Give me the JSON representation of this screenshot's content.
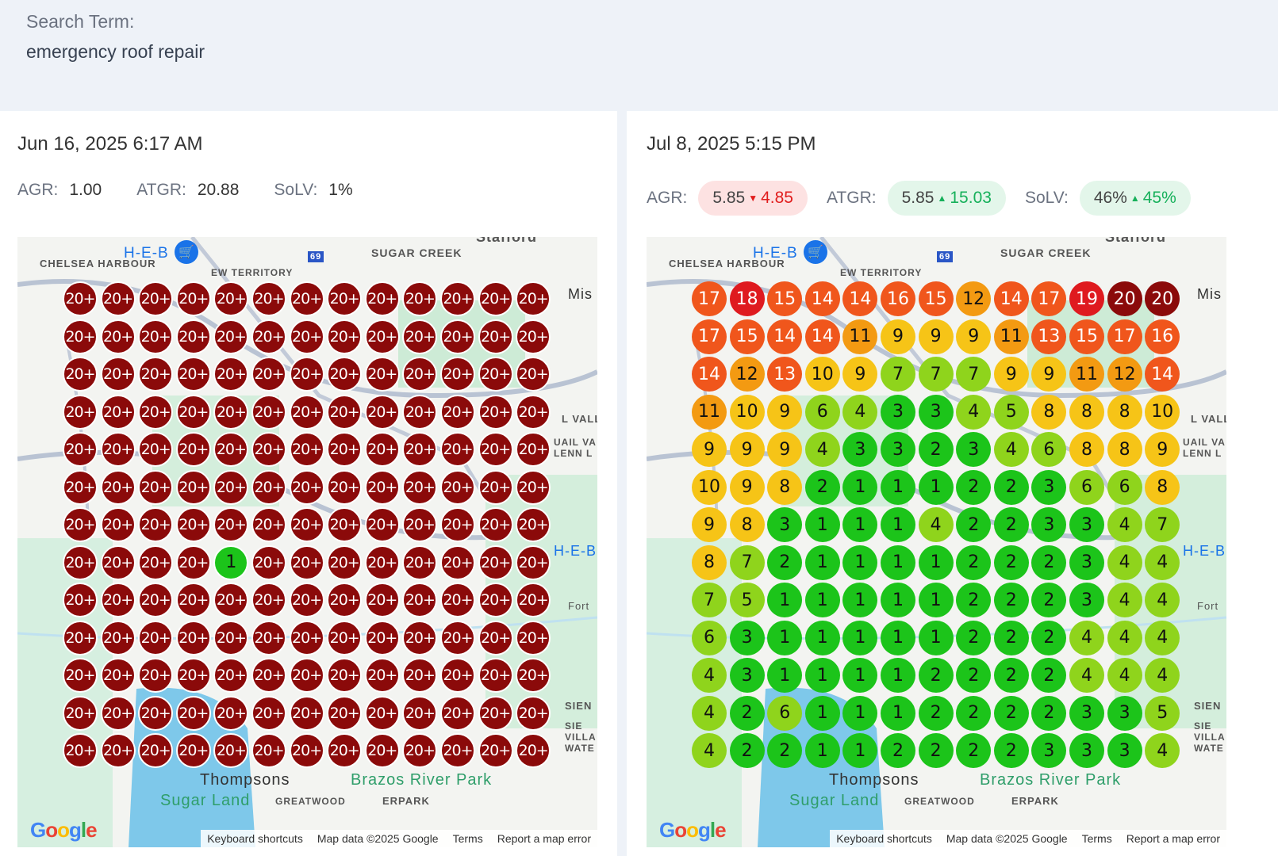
{
  "search": {
    "label": "Search Term:",
    "value": "emergency roof repair"
  },
  "colors": {
    "rank_1_3": "#1cc41a",
    "rank_4_7": "#8fd41c",
    "rank_8_10": "#f6c417",
    "rank_11_12": "#f39a12",
    "rank_13_17": "#f0561c",
    "rank_18_19": "#df1a1f",
    "rank_20": "#8b0a0a",
    "bad": "#e11d1d",
    "good": "#16b05a"
  },
  "map": {
    "labels": [
      "CHELSEA HARBOUR",
      "H-E-B",
      "SUGAR CREEK",
      "Stafford",
      "Mis",
      "EW TERRITORY",
      "ERPARK",
      "Brazos River Park",
      "Sugar Land",
      "GREATWOOD",
      "L VALLE",
      "UAIL VA LENN L",
      "H-E-B",
      "Fort",
      "SIEN",
      "SIE VILLA WATE",
      "Thompsons",
      "69"
    ],
    "google": "Google",
    "footer": [
      "Keyboard shortcuts",
      "Map data ©2025 Google",
      "Terms",
      "Report a map error"
    ]
  },
  "left": {
    "date": "Jun 16, 2025 6:17 AM",
    "agr_label": "AGR:",
    "agr": "1.00",
    "atgr_label": "ATGR:",
    "atgr": "20.88",
    "solv_label": "SoLV:",
    "solv": "1%",
    "grid": [
      [
        "20+",
        "20+",
        "20+",
        "20+",
        "20+",
        "20+",
        "20+",
        "20+",
        "20+",
        "20+",
        "20+",
        "20+",
        "20+"
      ],
      [
        "20+",
        "20+",
        "20+",
        "20+",
        "20+",
        "20+",
        "20+",
        "20+",
        "20+",
        "20+",
        "20+",
        "20+",
        "20+"
      ],
      [
        "20+",
        "20+",
        "20+",
        "20+",
        "20+",
        "20+",
        "20+",
        "20+",
        "20+",
        "20+",
        "20+",
        "20+",
        "20+"
      ],
      [
        "20+",
        "20+",
        "20+",
        "20+",
        "20+",
        "20+",
        "20+",
        "20+",
        "20+",
        "20+",
        "20+",
        "20+",
        "20+"
      ],
      [
        "20+",
        "20+",
        "20+",
        "20+",
        "20+",
        "20+",
        "20+",
        "20+",
        "20+",
        "20+",
        "20+",
        "20+",
        "20+"
      ],
      [
        "20+",
        "20+",
        "20+",
        "20+",
        "20+",
        "20+",
        "20+",
        "20+",
        "20+",
        "20+",
        "20+",
        "20+",
        "20+"
      ],
      [
        "20+",
        "20+",
        "20+",
        "20+",
        "20+",
        "20+",
        "20+",
        "20+",
        "20+",
        "20+",
        "20+",
        "20+",
        "20+"
      ],
      [
        "20+",
        "20+",
        "20+",
        "20+",
        "1",
        "20+",
        "20+",
        "20+",
        "20+",
        "20+",
        "20+",
        "20+",
        "20+"
      ],
      [
        "20+",
        "20+",
        "20+",
        "20+",
        "20+",
        "20+",
        "20+",
        "20+",
        "20+",
        "20+",
        "20+",
        "20+",
        "20+"
      ],
      [
        "20+",
        "20+",
        "20+",
        "20+",
        "20+",
        "20+",
        "20+",
        "20+",
        "20+",
        "20+",
        "20+",
        "20+",
        "20+"
      ],
      [
        "20+",
        "20+",
        "20+",
        "20+",
        "20+",
        "20+",
        "20+",
        "20+",
        "20+",
        "20+",
        "20+",
        "20+",
        "20+"
      ],
      [
        "20+",
        "20+",
        "20+",
        "20+",
        "20+",
        "20+",
        "20+",
        "20+",
        "20+",
        "20+",
        "20+",
        "20+",
        "20+"
      ],
      [
        "20+",
        "20+",
        "20+",
        "20+",
        "20+",
        "20+",
        "20+",
        "20+",
        "20+",
        "20+",
        "20+",
        "20+",
        "20+"
      ]
    ]
  },
  "right": {
    "date": "Jul 8, 2025 5:15 PM",
    "agr_label": "AGR:",
    "agr": "5.85",
    "agr_delta": "4.85",
    "agr_dir": "▼",
    "atgr_label": "ATGR:",
    "atgr": "5.85",
    "atgr_delta": "15.03",
    "atgr_dir": "▲",
    "solv_label": "SoLV:",
    "solv": "46%",
    "solv_delta": "45%",
    "solv_dir": "▲",
    "grid": [
      [
        "17",
        "18",
        "15",
        "14",
        "14",
        "16",
        "15",
        "12",
        "14",
        "17",
        "19",
        "20",
        "20"
      ],
      [
        "17",
        "15",
        "14",
        "14",
        "11",
        "9",
        "9",
        "9",
        "11",
        "13",
        "15",
        "17",
        "16"
      ],
      [
        "14",
        "12",
        "13",
        "10",
        "9",
        "7",
        "7",
        "7",
        "9",
        "9",
        "11",
        "12",
        "14"
      ],
      [
        "11",
        "10",
        "9",
        "6",
        "4",
        "3",
        "3",
        "4",
        "5",
        "8",
        "8",
        "8",
        "10"
      ],
      [
        "9",
        "9",
        "9",
        "4",
        "3",
        "3",
        "2",
        "3",
        "4",
        "6",
        "8",
        "8",
        "9"
      ],
      [
        "10",
        "9",
        "8",
        "2",
        "1",
        "1",
        "1",
        "2",
        "2",
        "3",
        "6",
        "6",
        "8"
      ],
      [
        "9",
        "8",
        "3",
        "1",
        "1",
        "1",
        "4",
        "2",
        "2",
        "3",
        "3",
        "4",
        "7"
      ],
      [
        "8",
        "7",
        "2",
        "1",
        "1",
        "1",
        "1",
        "2",
        "2",
        "2",
        "3",
        "4",
        "4"
      ],
      [
        "7",
        "5",
        "1",
        "1",
        "1",
        "1",
        "1",
        "2",
        "2",
        "2",
        "3",
        "4",
        "4"
      ],
      [
        "6",
        "3",
        "1",
        "1",
        "1",
        "1",
        "1",
        "2",
        "2",
        "2",
        "4",
        "4",
        "4"
      ],
      [
        "4",
        "3",
        "1",
        "1",
        "1",
        "1",
        "2",
        "2",
        "2",
        "2",
        "4",
        "4",
        "4"
      ],
      [
        "4",
        "2",
        "6",
        "1",
        "1",
        "1",
        "2",
        "2",
        "2",
        "2",
        "3",
        "3",
        "5"
      ],
      [
        "4",
        "2",
        "2",
        "1",
        "1",
        "2",
        "2",
        "2",
        "2",
        "3",
        "3",
        "3",
        "4"
      ]
    ]
  }
}
